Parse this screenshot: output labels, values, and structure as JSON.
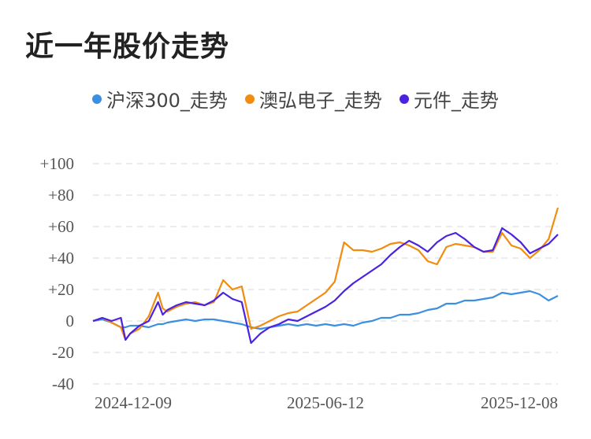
{
  "title": "近一年股价走势",
  "colors": {
    "hs300": "#3b8fe0",
    "aohong": "#f28c0f",
    "yuanjian": "#4a22e0",
    "grid": "#e6e6e6"
  },
  "chart_data": {
    "type": "line",
    "title": "近一年股价走势",
    "xlabel": "",
    "ylabel": "",
    "ylim": [
      -40,
      100
    ],
    "yticks": [
      "+100",
      "+80",
      "+60",
      "+40",
      "+20",
      "0",
      "-20",
      "-40"
    ],
    "ytick_values": [
      100,
      80,
      60,
      40,
      20,
      0,
      -20,
      -40
    ],
    "xticks": [
      "2024-12-09",
      "2025-06-12",
      "2025-12-08"
    ],
    "xtick_positions": [
      0,
      0.5,
      1
    ],
    "grid": true,
    "legend_position": "top-center",
    "x": [
      0,
      0.02,
      0.04,
      0.06,
      0.07,
      0.08,
      0.1,
      0.12,
      0.14,
      0.15,
      0.16,
      0.18,
      0.2,
      0.22,
      0.24,
      0.26,
      0.28,
      0.3,
      0.32,
      0.34,
      0.36,
      0.38,
      0.4,
      0.42,
      0.44,
      0.46,
      0.48,
      0.5,
      0.52,
      0.54,
      0.56,
      0.58,
      0.6,
      0.62,
      0.64,
      0.66,
      0.68,
      0.7,
      0.72,
      0.74,
      0.76,
      0.78,
      0.8,
      0.82,
      0.84,
      0.86,
      0.88,
      0.9,
      0.92,
      0.94,
      0.96,
      0.98,
      1.0
    ],
    "series": [
      {
        "name": "沪深300_走势",
        "color_key": "hs300",
        "values": [
          0,
          1,
          -1,
          -4,
          -4,
          -3,
          -3,
          -4,
          -2,
          -2,
          -1,
          0,
          1,
          0,
          1,
          1,
          0,
          -1,
          -2,
          -4,
          -5,
          -4,
          -3,
          -2,
          -3,
          -2,
          -3,
          -2,
          -3,
          -2,
          -3,
          -1,
          0,
          2,
          2,
          4,
          4,
          5,
          7,
          8,
          11,
          11,
          13,
          13,
          14,
          15,
          18,
          17,
          18,
          19,
          17,
          13,
          16
        ]
      },
      {
        "name": "澳弘电子_走势",
        "color_key": "aohong",
        "values": [
          0,
          2,
          -1,
          -4,
          -12,
          -8,
          -5,
          3,
          18,
          8,
          6,
          9,
          11,
          12,
          10,
          12,
          26,
          20,
          22,
          -5,
          -3,
          0,
          3,
          5,
          6,
          10,
          14,
          18,
          25,
          50,
          45,
          45,
          44,
          46,
          49,
          50,
          48,
          45,
          38,
          36,
          47,
          49,
          48,
          47,
          44,
          44,
          56,
          48,
          46,
          40,
          45,
          52,
          72
        ]
      },
      {
        "name": "元件_走势",
        "color_key": "yuanjian",
        "values": [
          0,
          2,
          0,
          2,
          -12,
          -8,
          -3,
          0,
          12,
          4,
          7,
          10,
          12,
          11,
          10,
          13,
          18,
          14,
          12,
          -14,
          -8,
          -4,
          -2,
          1,
          0,
          3,
          6,
          9,
          13,
          19,
          24,
          28,
          32,
          36,
          42,
          47,
          51,
          48,
          44,
          50,
          54,
          56,
          52,
          47,
          44,
          45,
          59,
          55,
          50,
          43,
          46,
          49,
          55
        ]
      }
    ]
  }
}
